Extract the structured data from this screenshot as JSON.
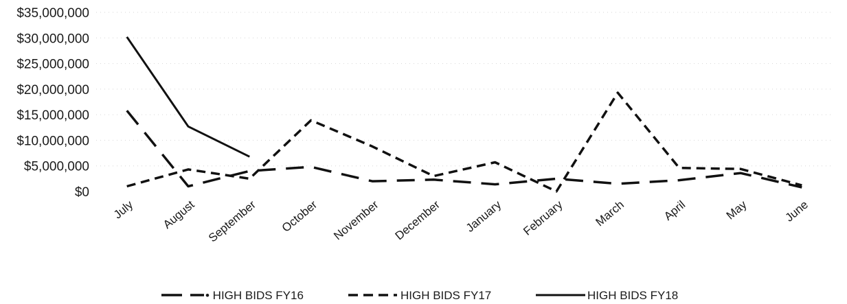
{
  "chart_data": {
    "type": "line",
    "title": "",
    "xlabel": "",
    "ylabel": "",
    "categories": [
      "July",
      "August",
      "September",
      "October",
      "November",
      "December",
      "January",
      "February",
      "March",
      "April",
      "May",
      "June"
    ],
    "ylim": [
      0,
      35000000
    ],
    "yticks": [
      0,
      5000000,
      10000000,
      15000000,
      20000000,
      25000000,
      30000000,
      35000000
    ],
    "ytick_labels": [
      "$0",
      "$5,000,000",
      "$10,000,000",
      "$15,000,000",
      "$20,000,000",
      "$25,000,000",
      "$30,000,000",
      "$35,000,000"
    ],
    "grid": true,
    "legend_position": "bottom",
    "series": [
      {
        "name": "HIGH BIDS FY16",
        "legend_label": "• HIGH BIDS FY16",
        "line_style": "long-dash",
        "values": [
          15800000,
          1000000,
          4000000,
          4800000,
          2000000,
          2300000,
          1400000,
          2500000,
          1500000,
          2200000,
          3600000,
          800000
        ]
      },
      {
        "name": "HIGH BIDS FY17",
        "legend_label": "HIGH BIDS FY17",
        "line_style": "short-dash",
        "values": [
          1000000,
          4300000,
          2500000,
          13900000,
          8800000,
          3000000,
          5700000,
          0,
          19300000,
          4600000,
          4400000,
          1200000
        ]
      },
      {
        "name": "HIGH BIDS FY18",
        "legend_label": "HIGH BIDS FY18",
        "line_style": "solid",
        "values": [
          30200000,
          12700000,
          6800000,
          null,
          null,
          null,
          null,
          null,
          null,
          null,
          null,
          null
        ]
      }
    ],
    "colors": {
      "line": "#111111",
      "text": "#1a1a1a",
      "grid": "#d6d6d6"
    }
  }
}
